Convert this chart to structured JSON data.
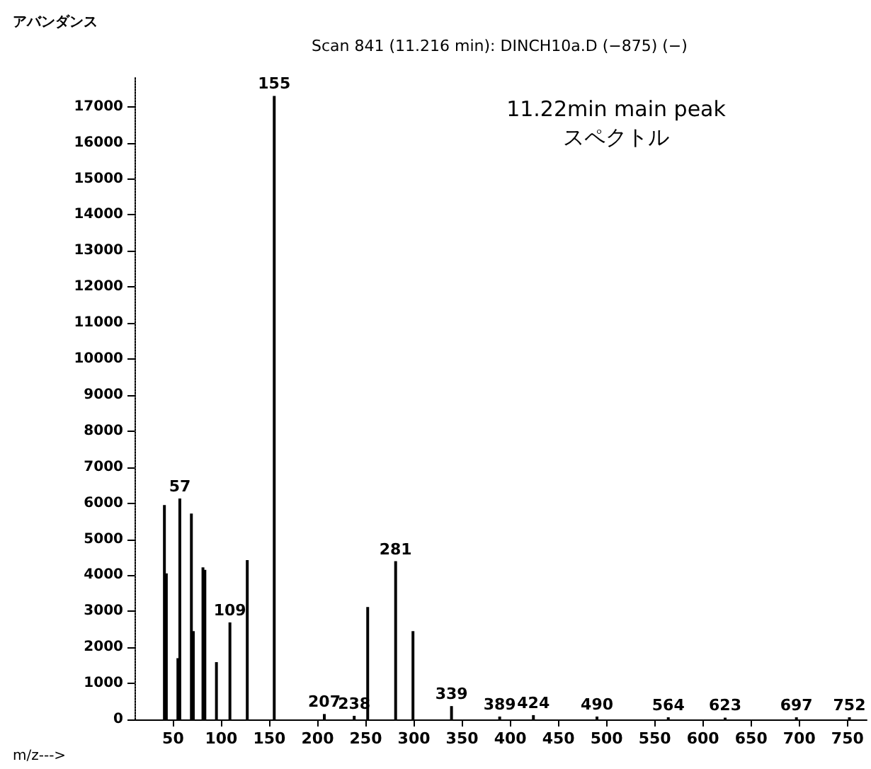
{
  "chart_data": {
    "type": "bar",
    "title": "Scan 841 (11.216 min): DINCH10a.D (−875) (−)",
    "xlabel": "m/z--->",
    "ylabel": "アバンダンス",
    "annotations": [
      "11.22min main peak\nスペクトル",
      {
        "text": "57",
        "x": 57,
        "y": 6130
      },
      {
        "text": "109",
        "x": 109,
        "y": 2690
      },
      {
        "text": "155",
        "x": 155,
        "y": 17300
      },
      {
        "text": "207",
        "x": 207,
        "y": 150
      },
      {
        "text": "238",
        "x": 238,
        "y": 100
      },
      {
        "text": "281",
        "x": 281,
        "y": 4390
      },
      {
        "text": "339",
        "x": 339,
        "y": 370
      },
      {
        "text": "389",
        "x": 389,
        "y": 80
      },
      {
        "text": "424",
        "x": 424,
        "y": 120
      },
      {
        "text": "490",
        "x": 490,
        "y": 80
      },
      {
        "text": "564",
        "x": 564,
        "y": 60
      },
      {
        "text": "623",
        "x": 623,
        "y": 50
      },
      {
        "text": "697",
        "x": 697,
        "y": 60
      },
      {
        "text": "752",
        "x": 752,
        "y": 60
      }
    ],
    "x": [
      41,
      43,
      55,
      57,
      69,
      71,
      81,
      83,
      95,
      109,
      127,
      155,
      207,
      238,
      252,
      281,
      299,
      339,
      389,
      424,
      490,
      564,
      623,
      697,
      752
    ],
    "values": [
      5950,
      4050,
      1700,
      6130,
      5710,
      2450,
      4220,
      4150,
      1590,
      2690,
      4420,
      17300,
      150,
      100,
      3120,
      4390,
      2450,
      370,
      80,
      120,
      80,
      60,
      50,
      60,
      60
    ],
    "color": "#000000",
    "xlim": [
      10,
      770
    ],
    "xticks": [
      50,
      100,
      150,
      200,
      250,
      300,
      350,
      400,
      450,
      500,
      550,
      600,
      650,
      700,
      750
    ],
    "ylim": [
      0,
      17800
    ],
    "yticks": [
      0,
      1000,
      2000,
      3000,
      4000,
      5000,
      6000,
      7000,
      8000,
      9000,
      10000,
      11000,
      12000,
      13000,
      14000,
      15000,
      16000,
      17000
    ],
    "grid": false
  }
}
